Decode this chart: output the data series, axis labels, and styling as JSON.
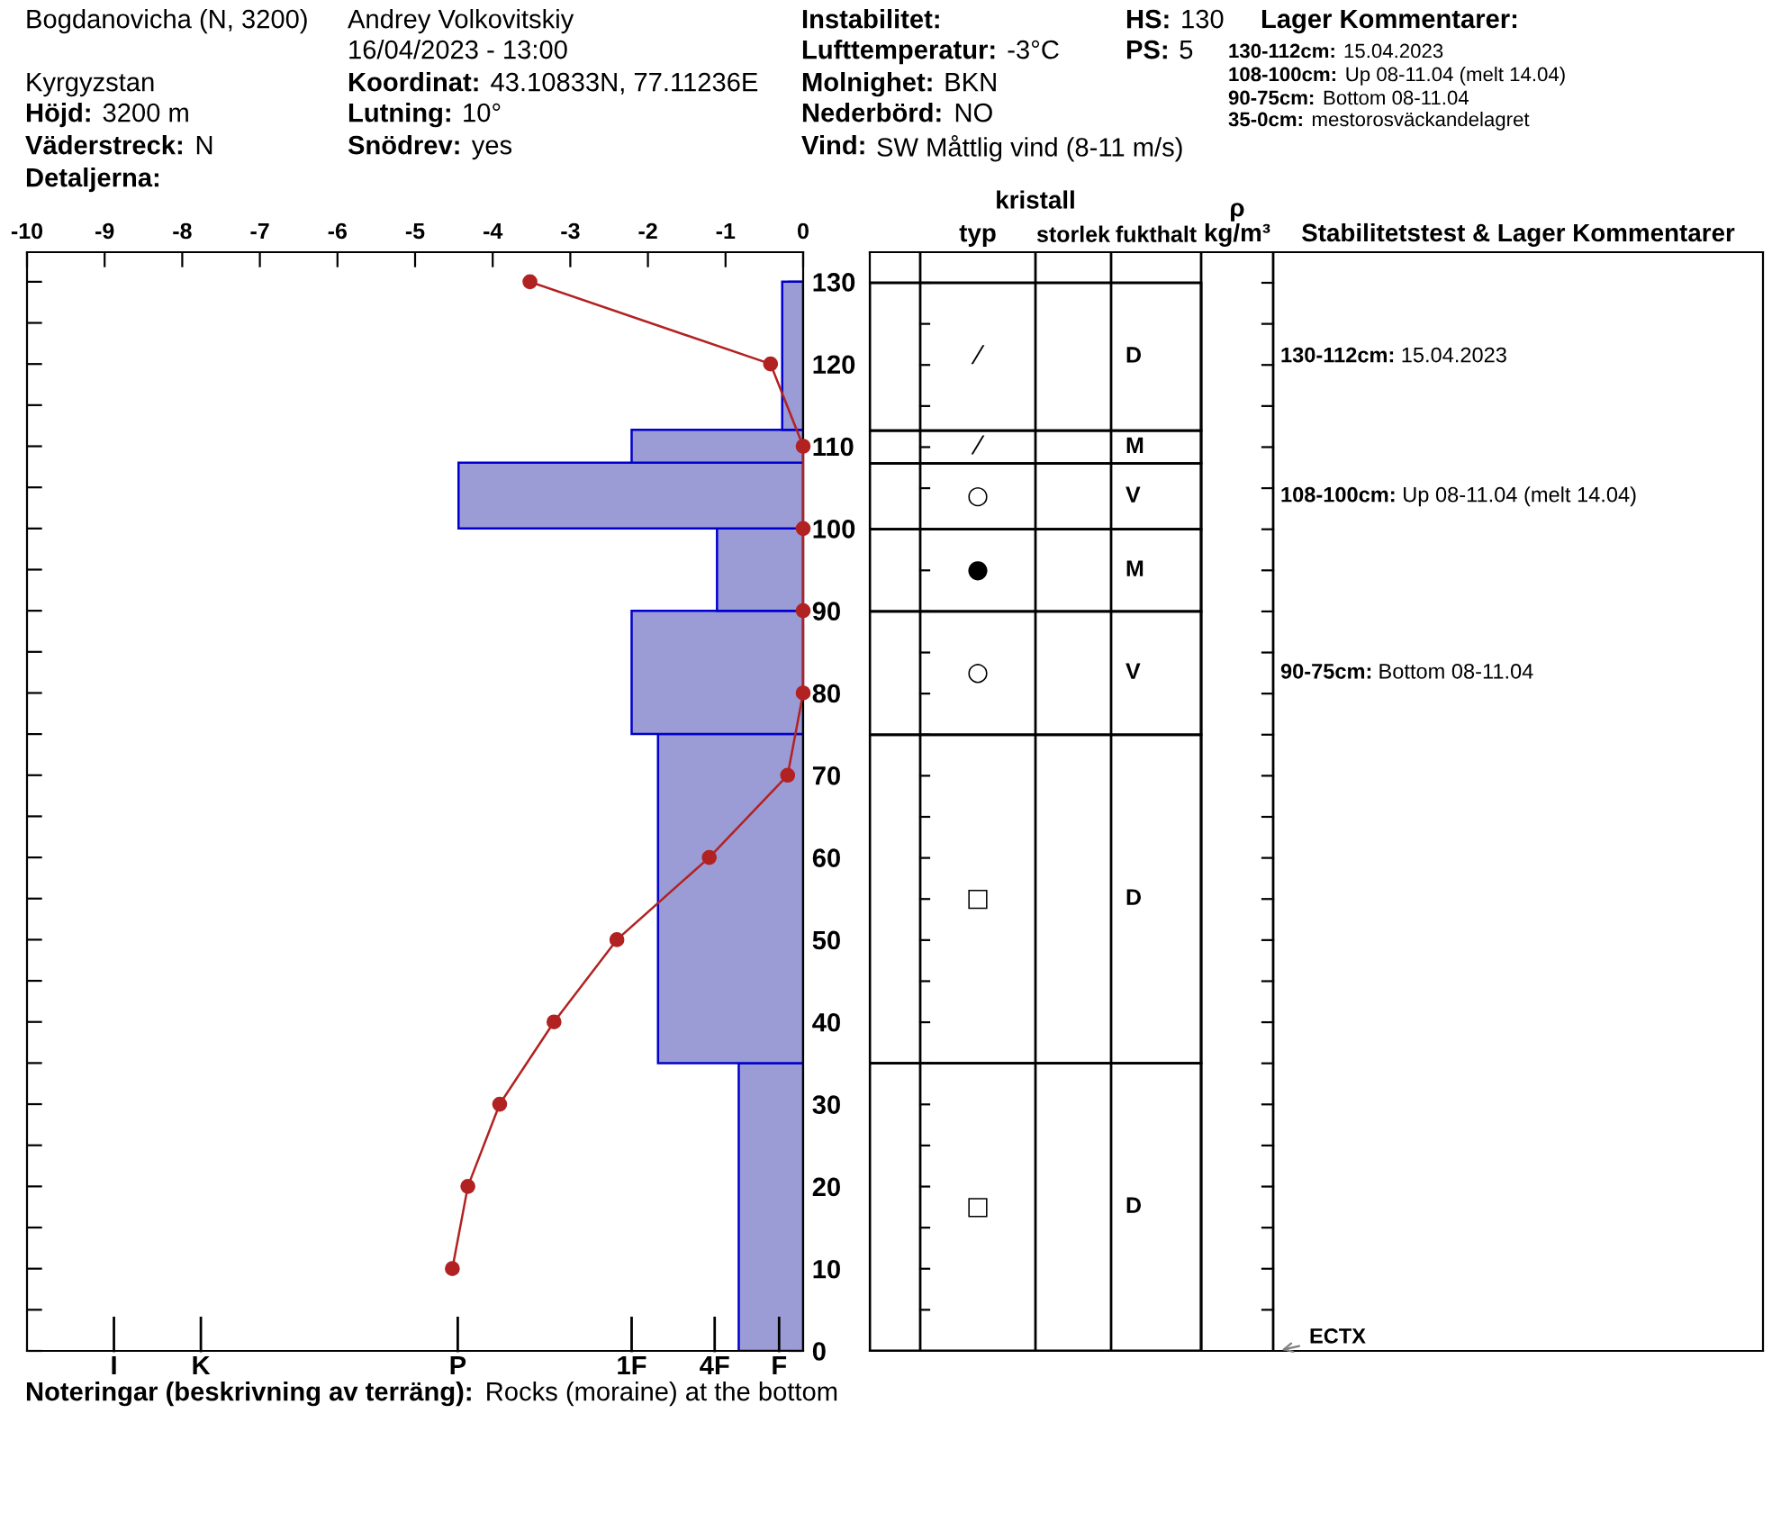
{
  "chart_data": [
    {
      "type": "bar",
      "orientation": "horizontal",
      "annotations": [
        "Bogdanovicha (N, 3200)",
        "Kyrgyzstan",
        "Höjd: 3200 m",
        "Väderstreck: N",
        "Detaljerna:",
        "Andrey Volkovitskiy",
        "16/04/2023 - 13:00",
        "Koordinat: 43.10833N, 77.11236E",
        "Lutning: 10°",
        "Snödrev: yes",
        "Instabilitet:",
        "Lufttemperatur: -3°C",
        "Molnighet: BKN",
        "Nederbörd: NO",
        "Vind: SW Måttlig vind (8-11 m/s)",
        "HS: 130",
        "PS: 5",
        "Lager Kommentarer:",
        "130-112cm: 15.04.2023",
        "108-100cm: Up 08-11.04 (melt 14.04)",
        "90-75cm: Bottom 08-11.04",
        "35-0cm: mestorosväckandelagret",
        "Noteringar (beskrivning av terräng): Rocks (moraine) at the bottom",
        "F",
        "4F",
        "1F",
        "P",
        "K",
        "I"
      ],
      "series": [
        {
          "color": "#9b9bd6",
          "x": [
            17.5,
            55,
            82.5,
            95,
            104,
            110,
            121
          ],
          "values": [
            -0.83,
            -1.87,
            -2.21,
            -1.11,
            -4.44,
            -2.21,
            -0.27
          ]
        },
        {
          "type": "line",
          "color": "#b22222",
          "marker": "circle",
          "x": [
            130,
            120,
            110,
            100,
            90,
            80,
            70,
            60,
            50,
            40,
            30,
            20,
            10
          ],
          "values": [
            -3.52,
            -0.42,
            0,
            0,
            0,
            0,
            -0.2,
            -1.21,
            -2.4,
            -3.21,
            -3.91,
            -4.32,
            -4.52
          ]
        }
      ],
      "xlim": [
        -10,
        0
      ],
      "xticks": [
        -10,
        -9,
        -8,
        -7,
        -6,
        -5,
        -4,
        -3,
        -2,
        -1,
        0
      ],
      "ylim": [
        0,
        133.6
      ],
      "yticks": [
        0,
        {
          "value": 5,
          "label": null
        },
        10,
        {
          "value": 15,
          "label": null
        },
        20,
        {
          "value": 25,
          "label": null
        },
        30,
        {
          "value": 35,
          "label": null
        },
        40,
        {
          "value": 45,
          "label": null
        },
        50,
        {
          "value": 55,
          "label": null
        },
        60,
        {
          "value": 65,
          "label": null
        },
        70,
        {
          "value": 75,
          "label": null
        },
        80,
        {
          "value": 85,
          "label": null
        },
        90,
        {
          "value": 95,
          "label": null
        },
        100,
        {
          "value": 105,
          "label": null
        },
        110,
        {
          "value": 115,
          "label": null
        },
        120,
        {
          "value": 125,
          "label": null
        },
        130
      ]
    },
    {
      "type": "other",
      "title": "kristall",
      "categories": [
        null,
        "typ",
        "storlek",
        "fukthalt",
        "ρ\nkg/m³",
        "Stabilitetstest & Lager Kommentarer"
      ],
      "cell_labels": [
        [
          null,
          "⁄",
          null,
          "D",
          null,
          "130-112cm: 15.04.2023"
        ],
        [
          null,
          "⁄",
          null,
          "M",
          null,
          null
        ],
        [
          null,
          "○",
          null,
          "V",
          null,
          "108-100cm: Up 08-11.04 (melt 14.04)"
        ],
        [
          null,
          "●",
          null,
          "M",
          null,
          null
        ],
        [
          null,
          "○",
          null,
          "V",
          null,
          "90-75cm: Bottom 08-11.04"
        ],
        [
          null,
          "□",
          null,
          "D",
          null,
          null
        ],
        [
          null,
          "□",
          null,
          "D",
          null,
          null
        ]
      ],
      "annotations": [
        "ECTX"
      ]
    }
  ]
}
